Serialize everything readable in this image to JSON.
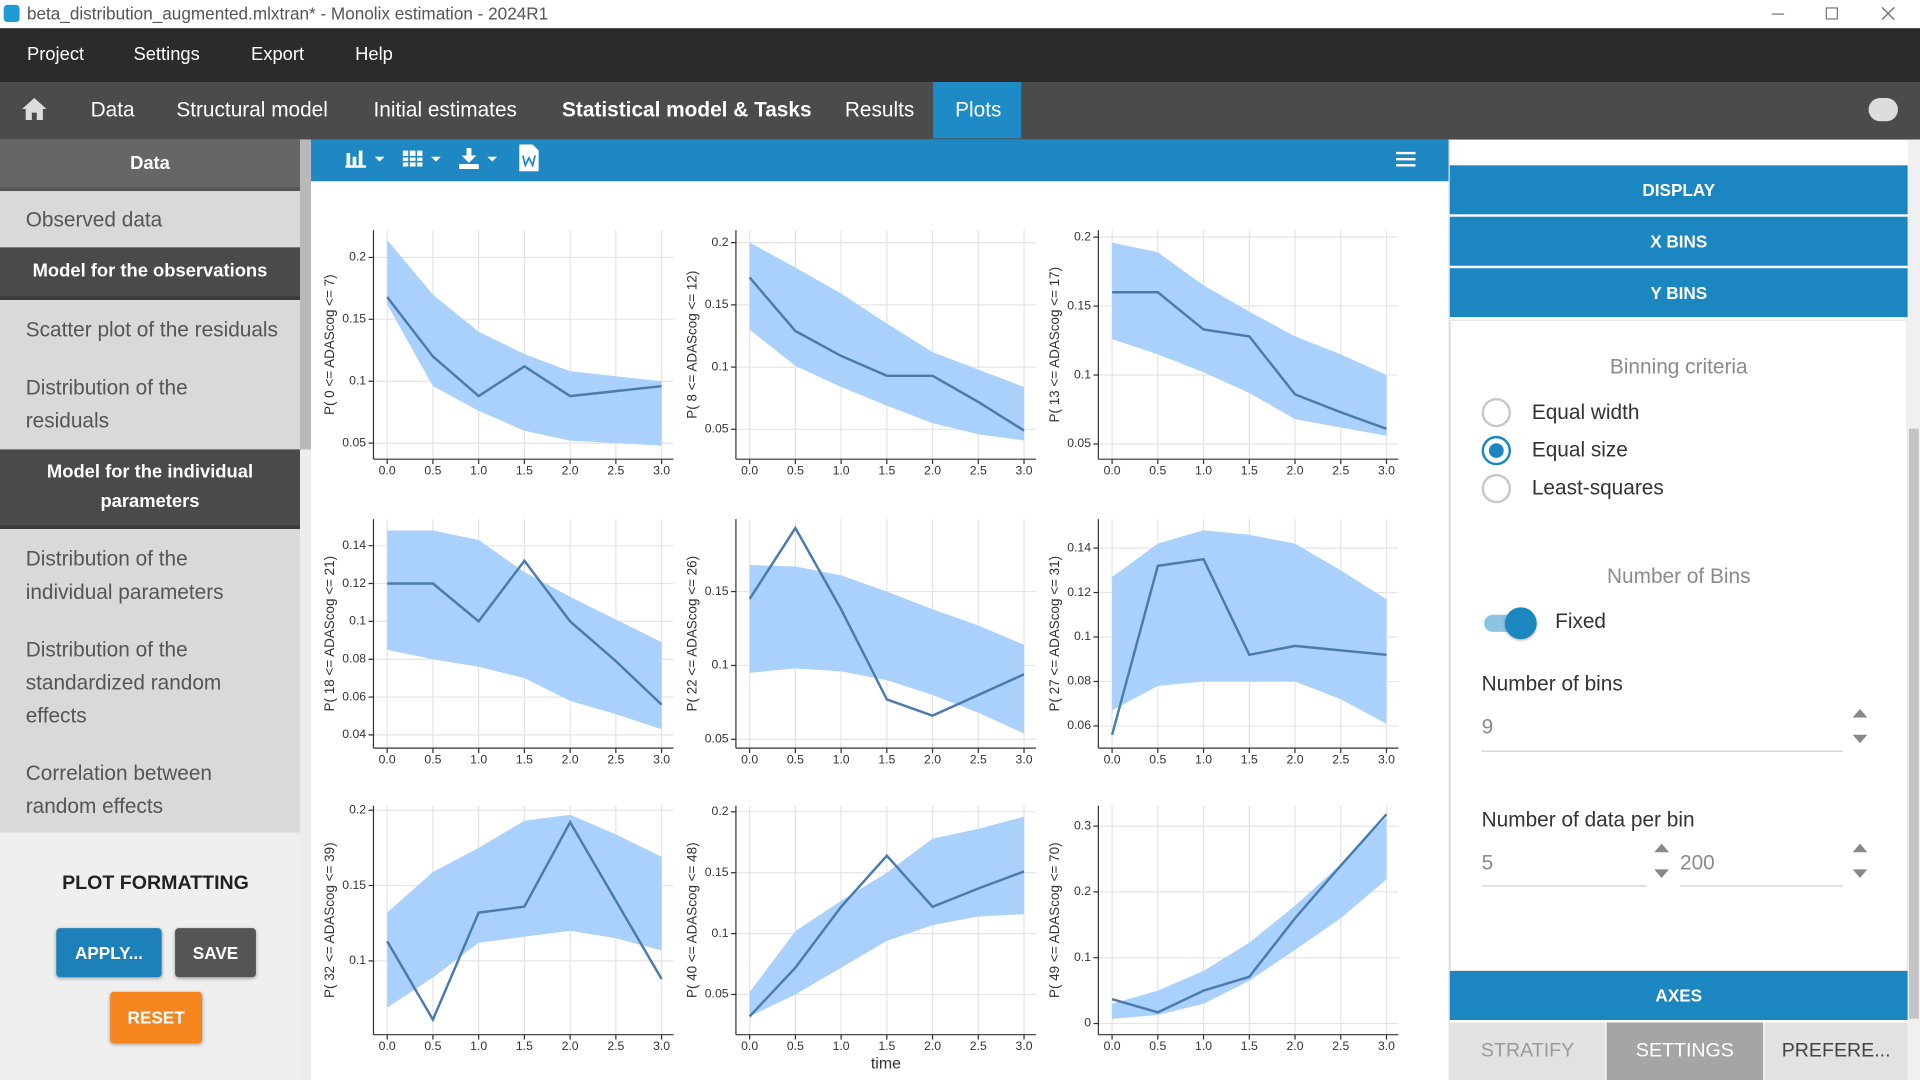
{
  "window": {
    "title": "beta_distribution_augmented.mlxtran* - Monolix estimation - 2024R1"
  },
  "menu": [
    "Project",
    "Settings",
    "Export",
    "Help"
  ],
  "tabs": [
    "Data",
    "Structural model",
    "Initial estimates",
    "Statistical model & Tasks",
    "Results",
    "Plots"
  ],
  "sidebar": {
    "sections": [
      {
        "header": "Data",
        "items": [
          "Observed data"
        ]
      },
      {
        "header": "Model for the observations",
        "items": [
          "Scatter plot of the residuals",
          "Distribution of the residuals"
        ]
      },
      {
        "header": "Model for the individual parameters",
        "items": [
          "Distribution of the individual parameters",
          "Distribution of the standardized random effects",
          "Correlation between random effects"
        ]
      }
    ]
  },
  "plot_formatting": {
    "title": "PLOT FORMATTING",
    "apply": "APPLY...",
    "save": "SAVE",
    "reset": "RESET"
  },
  "settings": {
    "sections": [
      "DISPLAY",
      "X BINS",
      "Y BINS"
    ],
    "binning_criteria": {
      "title": "Binning criteria",
      "options": [
        "Equal width",
        "Equal size",
        "Least-squares"
      ],
      "selected": 1
    },
    "number_of_bins": {
      "title": "Number of Bins",
      "toggle_label": "Fixed",
      "label": "Number of bins",
      "value": 9
    },
    "data_per_bin": {
      "label": "Number of data per bin",
      "min": 5,
      "max": 200
    },
    "axes": "AXES",
    "tabs": [
      "STRATIFY",
      "SETTINGS",
      "PREFERE..."
    ],
    "active_tab": 1
  },
  "chart_data": [
    {
      "type": "line",
      "ylabel": "P( 0 <= ADAScog <= 7)",
      "x": [
        0,
        0.5,
        1,
        1.5,
        2,
        2.5,
        3
      ],
      "xlim": [
        -0.15,
        3.13
      ],
      "ylim": [
        0.037,
        0.222
      ],
      "grid": true,
      "xticks": [
        {
          "value": 0,
          "label": "0.0"
        },
        0.5,
        {
          "value": 1,
          "label": "1.0"
        },
        1.5,
        {
          "value": 2,
          "label": "2.0"
        },
        2.5,
        {
          "value": 3,
          "label": "3.0"
        }
      ],
      "yticks": [
        0.05,
        0.1,
        0.15,
        0.2
      ],
      "band": {
        "color": "#a9d1fb",
        "upper": [
          0.214,
          0.17,
          0.14,
          0.122,
          0.108,
          0.104,
          0.1
        ],
        "lower": [
          0.162,
          0.096,
          0.076,
          0.06,
          0.052,
          0.05,
          0.048
        ]
      },
      "series": [
        {
          "color": "#4a7aae",
          "values": [
            0.168,
            0.12,
            0.088,
            0.112,
            0.088,
            0.092,
            0.096
          ]
        }
      ]
    },
    {
      "type": "line",
      "ylabel": "P( 8 <= ADAScog <= 12)",
      "x": [
        0,
        0.5,
        1,
        1.5,
        2,
        2.5,
        3
      ],
      "xlim": [
        -0.15,
        3.13
      ],
      "ylim": [
        0.026,
        0.21
      ],
      "grid": true,
      "xticks": [
        {
          "value": 0,
          "label": "0.0"
        },
        0.5,
        {
          "value": 1,
          "label": "1.0"
        },
        1.5,
        {
          "value": 2,
          "label": "2.0"
        },
        2.5,
        {
          "value": 3,
          "label": "3.0"
        }
      ],
      "yticks": [
        0.05,
        0.1,
        0.15,
        0.2
      ],
      "band": {
        "color": "#a9d1fb",
        "upper": [
          0.2,
          0.18,
          0.159,
          0.135,
          0.112,
          0.098,
          0.084
        ],
        "lower": [
          0.13,
          0.101,
          0.084,
          0.069,
          0.055,
          0.046,
          0.041
        ]
      },
      "series": [
        {
          "color": "#4a7aae",
          "values": [
            0.172,
            0.129,
            0.109,
            0.093,
            0.093,
            0.072,
            0.049
          ]
        }
      ]
    },
    {
      "type": "line",
      "ylabel": "P( 13 <= ADAScog <= 17)",
      "x": [
        0,
        0.5,
        1,
        1.5,
        2,
        2.5,
        3
      ],
      "xlim": [
        -0.15,
        3.13
      ],
      "ylim": [
        0.039,
        0.205
      ],
      "grid": true,
      "xticks": [
        {
          "value": 0,
          "label": "0.0"
        },
        0.5,
        {
          "value": 1,
          "label": "1.0"
        },
        1.5,
        {
          "value": 2,
          "label": "2.0"
        },
        2.5,
        {
          "value": 3,
          "label": "3.0"
        }
      ],
      "yticks": [
        0.05,
        0.1,
        0.15,
        0.2
      ],
      "band": {
        "color": "#a9d1fb",
        "upper": [
          0.196,
          0.189,
          0.165,
          0.146,
          0.128,
          0.115,
          0.1
        ],
        "lower": [
          0.126,
          0.115,
          0.102,
          0.087,
          0.068,
          0.062,
          0.056
        ]
      },
      "series": [
        {
          "color": "#4a7aae",
          "values": [
            0.16,
            0.16,
            0.133,
            0.128,
            0.086,
            0.073,
            0.061
          ]
        }
      ]
    },
    {
      "type": "line",
      "ylabel": "P( 18 <= ADAScog <= 21)",
      "x": [
        0,
        0.5,
        1,
        1.5,
        2,
        2.5,
        3
      ],
      "xlim": [
        -0.15,
        3.13
      ],
      "ylim": [
        0.033,
        0.154
      ],
      "grid": true,
      "xticks": [
        {
          "value": 0,
          "label": "0.0"
        },
        0.5,
        {
          "value": 1,
          "label": "1.0"
        },
        1.5,
        {
          "value": 2,
          "label": "2.0"
        },
        2.5,
        {
          "value": 3,
          "label": "3.0"
        }
      ],
      "yticks": [
        0.04,
        0.06,
        0.08,
        0.1,
        0.12,
        0.14
      ],
      "band": {
        "color": "#a9d1fb",
        "upper": [
          0.148,
          0.148,
          0.143,
          0.126,
          0.113,
          0.101,
          0.089
        ],
        "lower": [
          0.085,
          0.08,
          0.076,
          0.07,
          0.058,
          0.051,
          0.043
        ]
      },
      "series": [
        {
          "color": "#4a7aae",
          "values": [
            0.12,
            0.12,
            0.1,
            0.132,
            0.1,
            0.079,
            0.056
          ]
        }
      ]
    },
    {
      "type": "line",
      "ylabel": "P( 22 <= ADAScog <= 26)",
      "x": [
        0,
        0.5,
        1,
        1.5,
        2,
        2.5,
        3
      ],
      "xlim": [
        -0.15,
        3.13
      ],
      "ylim": [
        0.044,
        0.199
      ],
      "grid": true,
      "xticks": [
        {
          "value": 0,
          "label": "0.0"
        },
        0.5,
        {
          "value": 1,
          "label": "1.0"
        },
        1.5,
        {
          "value": 2,
          "label": "2.0"
        },
        2.5,
        {
          "value": 3,
          "label": "3.0"
        }
      ],
      "yticks": [
        0.05,
        0.1,
        0.15
      ],
      "band": {
        "color": "#a9d1fb",
        "upper": [
          0.168,
          0.167,
          0.161,
          0.15,
          0.138,
          0.127,
          0.114
        ],
        "lower": [
          0.095,
          0.098,
          0.096,
          0.09,
          0.08,
          0.068,
          0.054
        ]
      },
      "series": [
        {
          "color": "#4a7aae",
          "values": [
            0.145,
            0.193,
            0.138,
            0.077,
            0.066,
            0.08,
            0.094
          ]
        }
      ]
    },
    {
      "type": "line",
      "ylabel": "P( 27 <= ADAScog <= 31)",
      "x": [
        0,
        0.5,
        1,
        1.5,
        2,
        2.5,
        3
      ],
      "xlim": [
        -0.15,
        3.13
      ],
      "ylim": [
        0.05,
        0.153
      ],
      "grid": true,
      "xticks": [
        {
          "value": 0,
          "label": "0.0"
        },
        0.5,
        {
          "value": 1,
          "label": "1.0"
        },
        1.5,
        {
          "value": 2,
          "label": "2.0"
        },
        2.5,
        {
          "value": 3,
          "label": "3.0"
        }
      ],
      "yticks": [
        0.06,
        0.08,
        0.1,
        0.12,
        0.14
      ],
      "band": {
        "color": "#a9d1fb",
        "upper": [
          0.127,
          0.142,
          0.148,
          0.146,
          0.142,
          0.13,
          0.117
        ],
        "lower": [
          0.067,
          0.078,
          0.08,
          0.08,
          0.08,
          0.072,
          0.061
        ]
      },
      "series": [
        {
          "color": "#4a7aae",
          "values": [
            0.056,
            0.132,
            0.135,
            0.092,
            0.096,
            0.094,
            0.092
          ]
        }
      ]
    },
    {
      "type": "line",
      "ylabel": "P( 32 <= ADAScog <= 39)",
      "x": [
        0,
        0.5,
        1,
        1.5,
        2,
        2.5,
        3
      ],
      "xlim": [
        -0.15,
        3.13
      ],
      "ylim": [
        0.051,
        0.203
      ],
      "grid": true,
      "xticks": [
        {
          "value": 0,
          "label": "0.0"
        },
        0.5,
        {
          "value": 1,
          "label": "1.0"
        },
        1.5,
        {
          "value": 2,
          "label": "2.0"
        },
        2.5,
        {
          "value": 3,
          "label": "3.0"
        }
      ],
      "yticks": [
        0.1,
        0.15,
        0.2
      ],
      "band": {
        "color": "#a9d1fb",
        "upper": [
          0.132,
          0.159,
          0.175,
          0.193,
          0.197,
          0.184,
          0.169
        ],
        "lower": [
          0.069,
          0.089,
          0.112,
          0.116,
          0.12,
          0.115,
          0.107
        ]
      },
      "series": [
        {
          "color": "#4a7aae",
          "values": [
            0.113,
            0.061,
            0.132,
            0.136,
            0.192,
            0.14,
            0.088
          ]
        }
      ]
    },
    {
      "type": "line",
      "ylabel": "P( 40 <= ADAScog <= 48)",
      "xlabel": "time",
      "x": [
        0,
        0.5,
        1,
        1.5,
        2,
        2.5,
        3
      ],
      "xlim": [
        -0.15,
        3.13
      ],
      "ylim": [
        0.017,
        0.205
      ],
      "grid": true,
      "xticks": [
        {
          "value": 0,
          "label": "0.0"
        },
        0.5,
        {
          "value": 1,
          "label": "1.0"
        },
        1.5,
        {
          "value": 2,
          "label": "2.0"
        },
        2.5,
        {
          "value": 3,
          "label": "3.0"
        }
      ],
      "yticks": [
        0.05,
        0.1,
        0.15,
        0.2
      ],
      "band": {
        "color": "#a9d1fb",
        "upper": [
          0.052,
          0.102,
          0.127,
          0.15,
          0.178,
          0.186,
          0.196
        ],
        "lower": [
          0.032,
          0.05,
          0.072,
          0.094,
          0.107,
          0.114,
          0.116
        ]
      },
      "series": [
        {
          "color": "#4a7aae",
          "values": [
            0.032,
            0.072,
            0.122,
            0.164,
            0.122,
            0.137,
            0.151
          ]
        }
      ]
    },
    {
      "type": "line",
      "ylabel": "P( 49 <= ADAScog <= 70)",
      "x": [
        0,
        0.5,
        1,
        1.5,
        2,
        2.5,
        3
      ],
      "xlim": [
        -0.15,
        3.13
      ],
      "ylim": [
        -0.017,
        0.331
      ],
      "grid": true,
      "xticks": [
        {
          "value": 0,
          "label": "0.0"
        },
        0.5,
        {
          "value": 1,
          "label": "1.0"
        },
        1.5,
        {
          "value": 2,
          "label": "2.0"
        },
        2.5,
        {
          "value": 3,
          "label": "3.0"
        }
      ],
      "yticks": [
        0,
        0.1,
        0.2,
        0.3
      ],
      "band": {
        "color": "#a9d1fb",
        "upper": [
          0.03,
          0.05,
          0.08,
          0.123,
          0.179,
          0.242,
          0.313
        ],
        "lower": [
          0.007,
          0.013,
          0.03,
          0.065,
          0.112,
          0.16,
          0.219
        ]
      },
      "series": [
        {
          "color": "#4a7aae",
          "values": [
            0.037,
            0.017,
            0.05,
            0.071,
            0.16,
            0.24,
            0.318
          ]
        }
      ]
    }
  ]
}
